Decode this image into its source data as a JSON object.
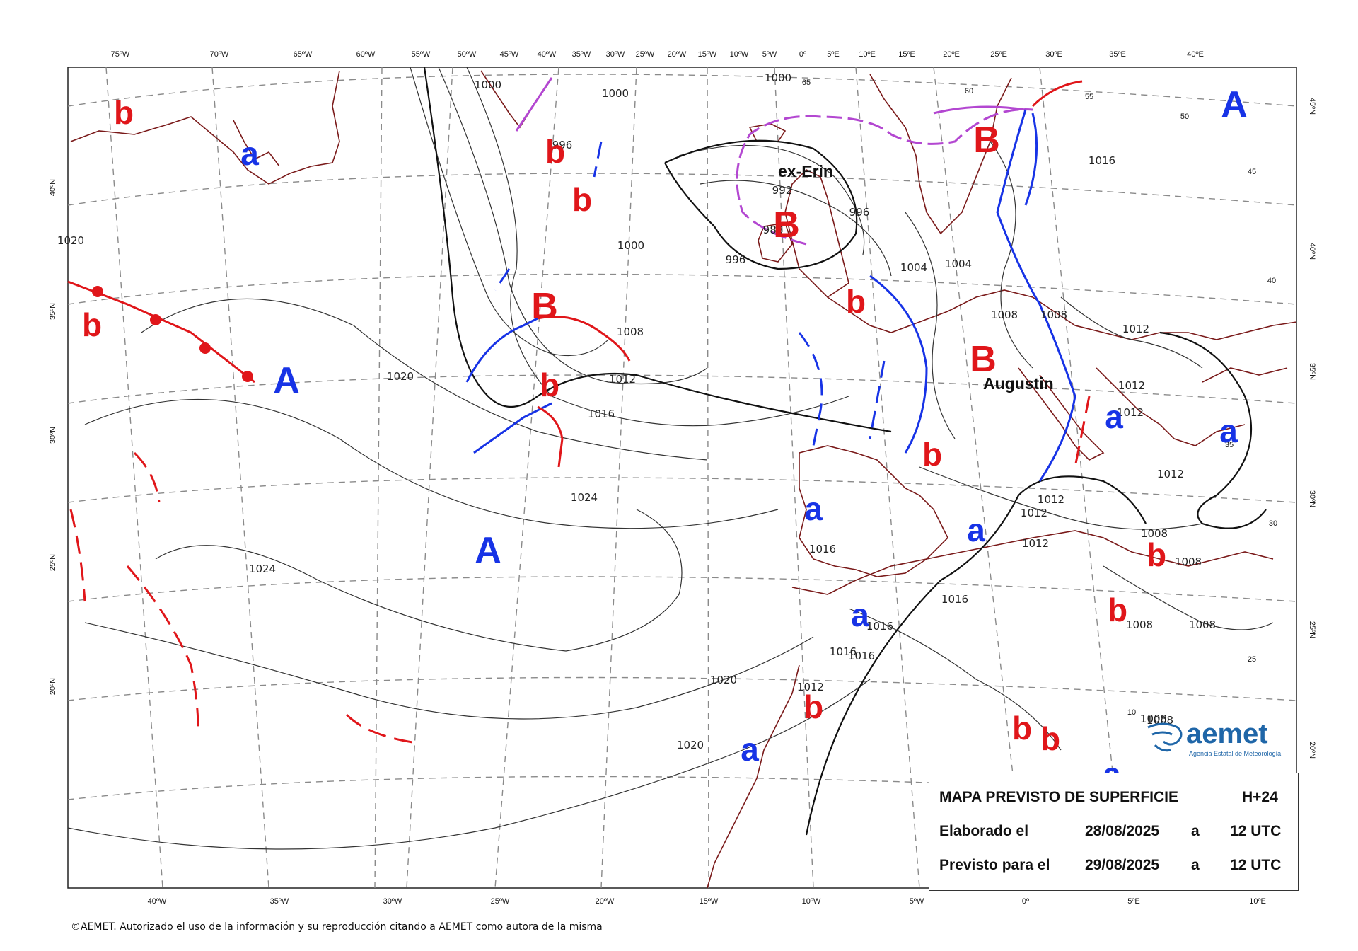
{
  "title": "MAPA PREVISTO DE SUPERFICIE",
  "forecast_hour": "H+24",
  "elaborated_label": "Elaborado el",
  "elaborated_date": "28/08/2025",
  "forecast_label": "Previsto para el",
  "forecast_date": "29/08/2025",
  "at_word": "a",
  "time_utc": "12 UTC",
  "credit": "©AEMET. Autorizado el uso de la información y su reproducción citando a AEMET como autora de la misma",
  "logo": {
    "name": "aemet",
    "subtitle": "Agencia Estatal de Meteorología",
    "color": "#1f66a8"
  },
  "colors": {
    "high": "#1733e6",
    "low": "#e0161a",
    "cold_front": "#1733e6",
    "warm_front": "#e0161a",
    "occluded_front": "#b347d1",
    "coast": "#7a1a1a",
    "grid": "#888888"
  },
  "top_longitudes": [
    "75ºW",
    "70ºW",
    "65ºW",
    "60ºW",
    "55ºW",
    "50ºW",
    "45ºW",
    "40ºW",
    "35ºW",
    "30ºW",
    "25ºW",
    "20ºW",
    "15ºW",
    "10ºW",
    "5ºW",
    "0º",
    "5ºE",
    "10ºE",
    "15ºE",
    "20ºE",
    "25ºE",
    "30ºE",
    "35ºE",
    "40ºE"
  ],
  "bottom_longitudes": [
    "40ºW",
    "35ºW",
    "30ºW",
    "25ºW",
    "20ºW",
    "15ºW",
    "10ºW",
    "5ºW",
    "0º",
    "5ºE",
    "10ºE"
  ],
  "left_latitudes": [
    "40ºN",
    "35ºN",
    "30ºN",
    "25ºN",
    "20ºN"
  ],
  "right_latitudes": [
    "45ºN",
    "40ºN",
    "35ºN",
    "30ºN",
    "25ºN",
    "20ºN"
  ],
  "inner_lat_labels": [
    "65",
    "60",
    "55",
    "50",
    "45",
    "40",
    "35",
    "30",
    "25",
    "10"
  ],
  "storms": [
    "ex-Erin",
    "Augustin"
  ],
  "pressure_centers": [
    {
      "label": "A",
      "type": "high"
    },
    {
      "label": "A",
      "type": "high"
    },
    {
      "label": "A",
      "type": "high"
    },
    {
      "label": "B",
      "type": "low"
    },
    {
      "label": "B",
      "type": "low"
    },
    {
      "label": "B",
      "type": "low"
    },
    {
      "label": "B",
      "type": "low"
    },
    {
      "label": "a",
      "type": "high"
    },
    {
      "label": "a",
      "type": "high"
    },
    {
      "label": "a",
      "type": "high"
    },
    {
      "label": "a",
      "type": "high"
    },
    {
      "label": "a",
      "type": "high"
    },
    {
      "label": "a",
      "type": "high"
    },
    {
      "label": "a",
      "type": "high"
    },
    {
      "label": "a",
      "type": "high"
    },
    {
      "label": "b",
      "type": "low"
    },
    {
      "label": "b",
      "type": "low"
    },
    {
      "label": "b",
      "type": "low"
    },
    {
      "label": "b",
      "type": "low"
    },
    {
      "label": "b",
      "type": "low"
    },
    {
      "label": "b",
      "type": "low"
    },
    {
      "label": "b",
      "type": "low"
    },
    {
      "label": "b",
      "type": "low"
    },
    {
      "label": "b",
      "type": "low"
    },
    {
      "label": "b",
      "type": "low"
    },
    {
      "label": "b",
      "type": "low"
    },
    {
      "label": "b",
      "type": "low"
    }
  ],
  "isobar_labels": [
    "1000",
    "1000",
    "1000",
    "996",
    "996",
    "996",
    "992",
    "988",
    "1000",
    "1004",
    "1004",
    "1008",
    "1008",
    "1008",
    "1012",
    "1012",
    "1012",
    "1012",
    "1012",
    "1012",
    "1012",
    "1012",
    "1012",
    "1016",
    "1016",
    "1016",
    "1016",
    "1016",
    "1016",
    "1016",
    "1020",
    "1020",
    "1020",
    "1020",
    "1024",
    "1024",
    "1008",
    "1008",
    "1008",
    "1008",
    "1008",
    "1008"
  ]
}
